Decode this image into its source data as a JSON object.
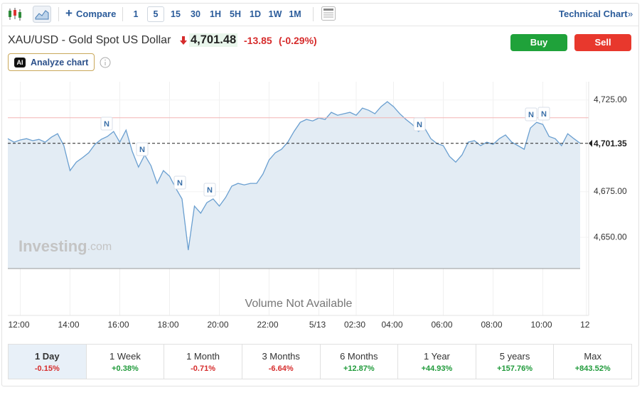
{
  "toolbar": {
    "compare": "Compare",
    "intervals": [
      "1",
      "5",
      "15",
      "30",
      "1H",
      "5H",
      "1D",
      "1W",
      "1M"
    ],
    "selected_interval": "5",
    "technical_chart": "Technical Chart",
    "technical_chart_arrow": "»"
  },
  "header": {
    "title": "XAU/USD - Gold Spot US Dollar",
    "price": "4,701.48",
    "change": "-13.85",
    "change_percent": "(-0.29%)",
    "buy": "Buy",
    "sell": "Sell",
    "ai_badge": "AI",
    "analyze": "Analyze chart"
  },
  "chart_data": {
    "type": "area",
    "categories": [
      null,
      null,
      "12:00",
      null,
      null,
      null,
      null,
      null,
      null,
      null,
      "14:00",
      null,
      null,
      null,
      null,
      null,
      null,
      null,
      "16:00",
      null,
      null,
      null,
      null,
      null,
      null,
      null,
      "18:00",
      null,
      null,
      null,
      null,
      null,
      null,
      null,
      "20:00",
      null,
      null,
      null,
      null,
      null,
      null,
      null,
      "22:00",
      null,
      null,
      null,
      null,
      null,
      null,
      null,
      "5/13",
      null,
      null,
      null,
      null,
      null,
      "02:30",
      null,
      null,
      null,
      null,
      null,
      "04:00",
      null,
      null,
      null,
      null,
      null,
      null,
      null,
      "06:00",
      null,
      null,
      null,
      null,
      null,
      null,
      null,
      "08:00",
      null,
      null,
      null,
      null,
      null,
      null,
      null,
      "10:00",
      null,
      null,
      null,
      null,
      null,
      null,
      "12"
    ],
    "values": [
      4703.9,
      4702.0,
      4703.2,
      4703.9,
      4702.8,
      4703.5,
      4702.0,
      4704.7,
      4706.6,
      4700.1,
      4686.5,
      4691.1,
      4693.5,
      4696.2,
      4700.8,
      4703.5,
      4705.1,
      4707.8,
      4702.0,
      4708.6,
      4697.0,
      4688.4,
      4695.0,
      4689.2,
      4679.5,
      4686.5,
      4683.4,
      4676.8,
      4671.0,
      4643.1,
      4667.1,
      4663.2,
      4669.0,
      4671.0,
      4667.1,
      4671.8,
      4678.0,
      4679.5,
      4678.7,
      4679.5,
      4679.5,
      4684.6,
      4692.3,
      4696.2,
      4698.1,
      4702.0,
      4707.8,
      4712.8,
      4714.4,
      4713.6,
      4715.2,
      4714.4,
      4718.3,
      4716.7,
      4717.5,
      4718.3,
      4716.7,
      4720.6,
      4719.4,
      4717.5,
      4721.4,
      4724.1,
      4721.4,
      4717.5,
      4714.4,
      4711.7,
      4707.8,
      4709.7,
      4703.9,
      4701.2,
      4700.1,
      4694.2,
      4691.1,
      4695.0,
      4702.0,
      4702.8,
      4700.1,
      4702.0,
      4700.8,
      4703.9,
      4705.9,
      4702.0,
      4700.1,
      4698.1,
      4709.7,
      4712.8,
      4711.7,
      4705.1,
      4703.9,
      4700.1,
      4706.6,
      4703.9,
      4701.4,
      null
    ],
    "color": "#6a9fd0",
    "fill_color": "#e3ecf4",
    "ylim": [
      4633,
      4735
    ],
    "yticks": [
      {
        "value": 4725,
        "label": "4,725.00"
      },
      {
        "value": 4675,
        "label": "4,675.00"
      },
      {
        "value": 4650,
        "label": "4,650.00"
      }
    ],
    "grid": true,
    "current_price": {
      "value": 4701.35,
      "label": "4,701.35"
    },
    "prev_close": 4715.33,
    "annotations": [
      "N",
      "N",
      "N",
      "N",
      "N",
      "N",
      "N"
    ],
    "watermark": "Investing",
    "watermark_suffix": ".com",
    "volume_note": "Volume Not Available"
  },
  "ranges": [
    {
      "label": "1 Day",
      "change": "-0.15%"
    },
    {
      "label": "1 Week",
      "change": "+0.38%"
    },
    {
      "label": "1 Month",
      "change": "-0.71%"
    },
    {
      "label": "3 Months",
      "change": "-6.64%"
    },
    {
      "label": "6 Months",
      "change": "+12.87%"
    },
    {
      "label": "1 Year",
      "change": "+44.93%"
    },
    {
      "label": "5 years",
      "change": "+157.76%"
    },
    {
      "label": "Max",
      "change": "+843.52%"
    }
  ],
  "active_range": 0
}
